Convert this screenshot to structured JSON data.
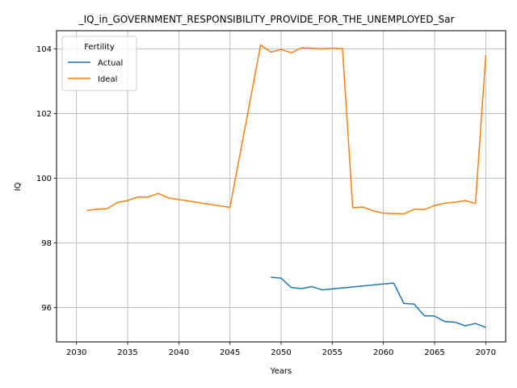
{
  "chart_data": {
    "type": "line",
    "title": "_IQ_in_GOVERNMENT_RESPONSIBILITY_PROVIDE_FOR_THE_UNEMPLOYED_Sar",
    "xlabel": "Years",
    "ylabel": "IQ",
    "xlim": [
      2028.05,
      2071.95
    ],
    "ylim": [
      94.94,
      104.56
    ],
    "xticks": [
      2030,
      2035,
      2040,
      2045,
      2050,
      2055,
      2060,
      2065,
      2070
    ],
    "yticks": [
      96,
      98,
      100,
      102,
      104
    ],
    "grid": true,
    "legend": {
      "title": "Fertility",
      "position": "top-left"
    },
    "series": [
      {
        "name": "Actual",
        "color": "#1f77b4",
        "x": [
          2049,
          2050,
          2051,
          2052,
          2053,
          2054,
          2061,
          2062,
          2063,
          2064,
          2065,
          2066,
          2067,
          2068,
          2069,
          2070
        ],
        "y": [
          96.94,
          96.91,
          96.62,
          96.59,
          96.65,
          96.55,
          96.76,
          96.13,
          96.11,
          95.75,
          95.74,
          95.57,
          95.55,
          95.44,
          95.51,
          95.39
        ]
      },
      {
        "name": "Ideal",
        "color": "#ff7f0e",
        "x": [
          2031,
          2032,
          2033,
          2034,
          2035,
          2036,
          2037,
          2038,
          2039,
          2045,
          2048,
          2049,
          2050,
          2051,
          2052,
          2053,
          2054,
          2055,
          2056,
          2057,
          2058,
          2059,
          2060,
          2061,
          2062,
          2063,
          2064,
          2065,
          2066,
          2067,
          2068,
          2069,
          2070
        ],
        "y": [
          99.0,
          99.04,
          99.06,
          99.25,
          99.31,
          99.42,
          99.42,
          99.53,
          99.39,
          99.1,
          104.12,
          103.9,
          103.98,
          103.88,
          104.03,
          104.02,
          104.0,
          104.02,
          104.01,
          99.09,
          99.11,
          98.99,
          98.92,
          98.91,
          98.9,
          99.04,
          99.03,
          99.16,
          99.23,
          99.26,
          99.31,
          99.22,
          103.8
        ]
      }
    ]
  }
}
